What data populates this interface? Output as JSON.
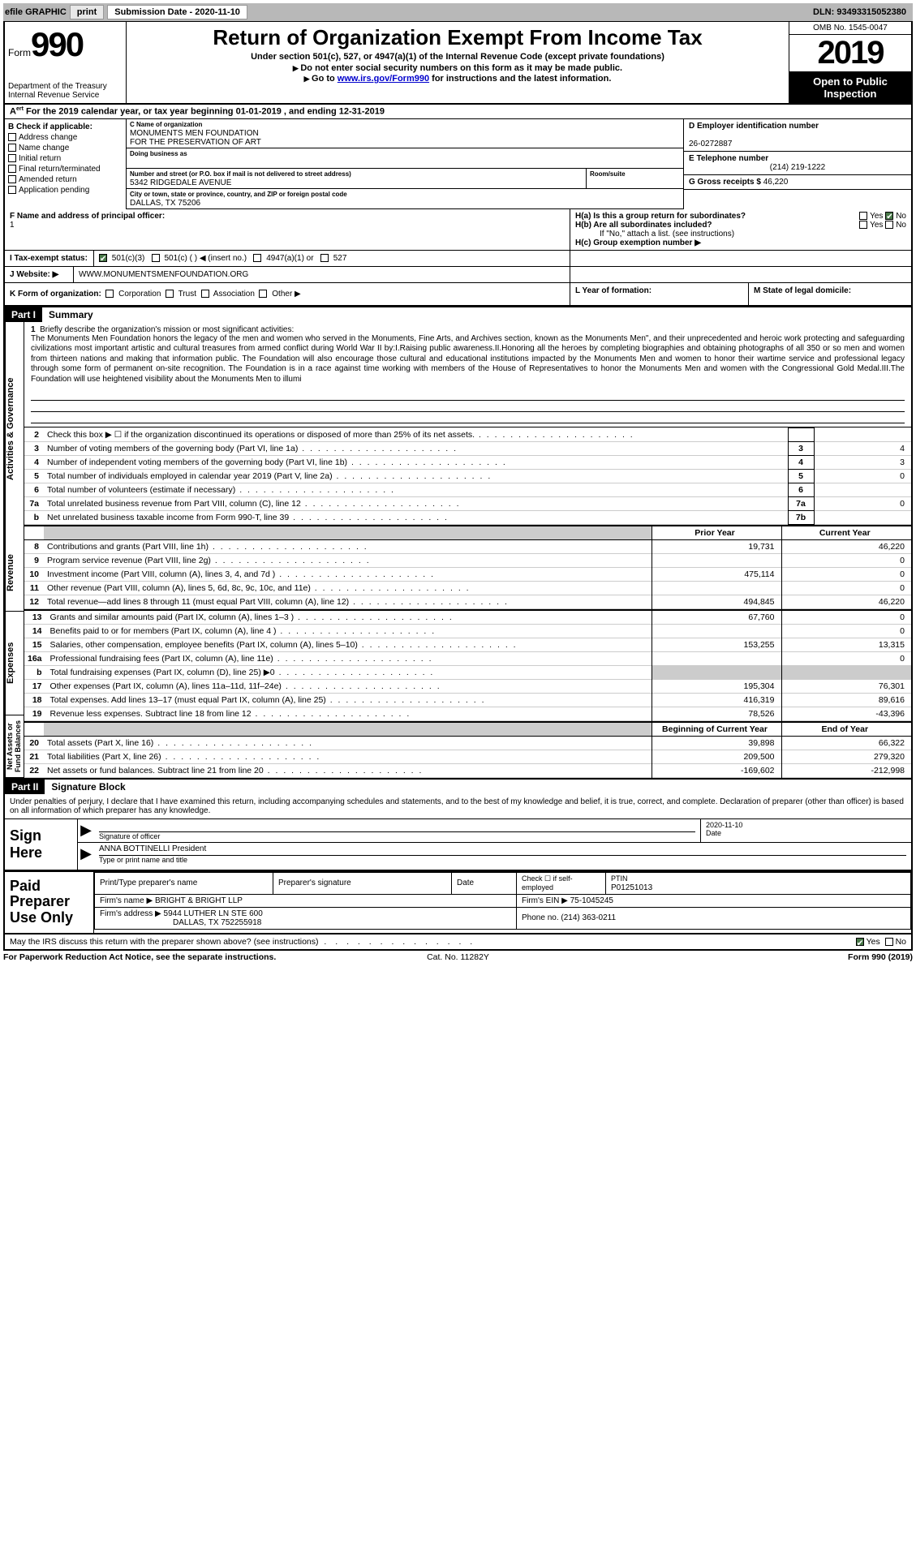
{
  "topbar": {
    "efile_label": "efile GRAPHIC",
    "print_btn": "print",
    "subdate_label": "Submission Date - 2020-11-10",
    "dln": "DLN: 93493315052380"
  },
  "header": {
    "form_word": "Form",
    "form_num": "990",
    "dept": "Department of the Treasury\nInternal Revenue Service",
    "title": "Return of Organization Exempt From Income Tax",
    "sub": "Under section 501(c), 527, or 4947(a)(1) of the Internal Revenue Code (except private foundations)",
    "instr1": "Do not enter social security numbers on this form as it may be made public.",
    "instr2_pre": "Go to ",
    "instr2_link": "www.irs.gov/Form990",
    "instr2_post": " for instructions and the latest information.",
    "omb": "OMB No. 1545-0047",
    "year": "2019",
    "inspect": "Open to Public Inspection"
  },
  "line_a": "For the 2019 calendar year, or tax year beginning 01-01-2019   , and ending 12-31-2019",
  "checks": {
    "b_label": "B Check if applicable:",
    "items": [
      "Address change",
      "Name change",
      "Initial return",
      "Final return/terminated",
      "Amended return",
      "Application pending"
    ]
  },
  "org": {
    "c_label": "C Name of organization",
    "name1": "MONUMENTS MEN FOUNDATION",
    "name2": "FOR THE PRESERVATION OF ART",
    "dba_label": "Doing business as",
    "dba": "",
    "street_label": "Number and street (or P.O. box if mail is not delivered to street address)",
    "street": "5342 RIDGEDALE AVENUE",
    "room_label": "Room/suite",
    "room": "",
    "city_label": "City or town, state or province, country, and ZIP or foreign postal code",
    "city": "DALLAS, TX  75206"
  },
  "right_info": {
    "d_label": "D Employer identification number",
    "ein": "26-0272887",
    "e_label": "E Telephone number",
    "phone": "(214) 219-1222",
    "g_label": "G Gross receipts $",
    "gross": "46,220"
  },
  "principal": {
    "f_label": "F  Name and address of principal officer:",
    "val": "1",
    "ha": "H(a)  Is this a group return for subordinates?",
    "hb": "H(b)  Are all subordinates included?",
    "hb_note": "If \"No,\" attach a list. (see instructions)",
    "hc": "H(c)  Group exemption number ▶",
    "yes": "Yes",
    "no": "No"
  },
  "tax": {
    "i_label": "I   Tax-exempt status:",
    "opts": [
      "501(c)(3)",
      "501(c) (   ) ◀ (insert no.)",
      "4947(a)(1) or",
      "527"
    ]
  },
  "web": {
    "j_label": "J   Website: ▶",
    "url": "WWW.MONUMENTSMENFOUNDATION.ORG"
  },
  "k": {
    "label": "K Form of organization:",
    "opts": [
      "Corporation",
      "Trust",
      "Association",
      "Other ▶"
    ],
    "l": "L Year of formation:",
    "m": "M State of legal domicile:"
  },
  "part1": {
    "hdr": "Part I",
    "title": "Summary"
  },
  "mission": {
    "num": "1",
    "label": "Briefly describe the organization's mission or most significant activities:",
    "text": "The Monuments Men Foundation honors the legacy of the men and women who served in the Monuments, Fine Arts, and Archives section, known as the Monuments Men\", and their unprecedented and heroic work protecting and safeguarding civilizations most important artistic and cultural treasures from armed conflict during World War II by:I.Raising public awareness.II.Honoring all the heroes by completing biographies and obtaining photographs of all 350 or so men and women from thirteen nations and making that information public. The Foundation will also encourage those cultural and educational institutions impacted by the Monuments Men and women to honor their wartime service and professional legacy through some form of permanent on-site recognition. The Foundation is in a race against time working with members of the House of Representatives to honor the Monuments Men and women with the Congressional Gold Medal.III.The Foundation will use heightened visibility about the Monuments Men to illumi"
  },
  "vtabs": {
    "ag": "Activities & Governance",
    "rev": "Revenue",
    "exp": "Expenses",
    "nab": "Net Assets or Fund Balances"
  },
  "lines_ag": [
    {
      "n": "2",
      "d": "Check this box ▶ ☐ if the organization discontinued its operations or disposed of more than 25% of its net assets.",
      "nb": "",
      "v": ""
    },
    {
      "n": "3",
      "d": "Number of voting members of the governing body (Part VI, line 1a)",
      "nb": "3",
      "v": "4"
    },
    {
      "n": "4",
      "d": "Number of independent voting members of the governing body (Part VI, line 1b)",
      "nb": "4",
      "v": "3"
    },
    {
      "n": "5",
      "d": "Total number of individuals employed in calendar year 2019 (Part V, line 2a)",
      "nb": "5",
      "v": "0"
    },
    {
      "n": "6",
      "d": "Total number of volunteers (estimate if necessary)",
      "nb": "6",
      "v": ""
    },
    {
      "n": "7a",
      "d": "Total unrelated business revenue from Part VIII, column (C), line 12",
      "nb": "7a",
      "v": "0"
    },
    {
      "n": "b",
      "d": "Net unrelated business taxable income from Form 990-T, line 39",
      "nb": "7b",
      "v": ""
    }
  ],
  "col_hdrs": {
    "prior": "Prior Year",
    "current": "Current Year",
    "boy": "Beginning of Current Year",
    "eoy": "End of Year"
  },
  "lines_rev": [
    {
      "n": "8",
      "d": "Contributions and grants (Part VIII, line 1h)",
      "p": "19,731",
      "c": "46,220"
    },
    {
      "n": "9",
      "d": "Program service revenue (Part VIII, line 2g)",
      "p": "",
      "c": "0"
    },
    {
      "n": "10",
      "d": "Investment income (Part VIII, column (A), lines 3, 4, and 7d )",
      "p": "475,114",
      "c": "0"
    },
    {
      "n": "11",
      "d": "Other revenue (Part VIII, column (A), lines 5, 6d, 8c, 9c, 10c, and 11e)",
      "p": "",
      "c": "0"
    },
    {
      "n": "12",
      "d": "Total revenue—add lines 8 through 11 (must equal Part VIII, column (A), line 12)",
      "p": "494,845",
      "c": "46,220"
    }
  ],
  "lines_exp": [
    {
      "n": "13",
      "d": "Grants and similar amounts paid (Part IX, column (A), lines 1–3 )",
      "p": "67,760",
      "c": "0"
    },
    {
      "n": "14",
      "d": "Benefits paid to or for members (Part IX, column (A), line 4 )",
      "p": "",
      "c": "0"
    },
    {
      "n": "15",
      "d": "Salaries, other compensation, employee benefits (Part IX, column (A), lines 5–10)",
      "p": "153,255",
      "c": "13,315"
    },
    {
      "n": "16a",
      "d": "Professional fundraising fees (Part IX, column (A), line 11e)",
      "p": "",
      "c": "0"
    },
    {
      "n": "b",
      "d": "Total fundraising expenses (Part IX, column (D), line 25) ▶0",
      "p": "",
      "c": "",
      "shade": true
    },
    {
      "n": "17",
      "d": "Other expenses (Part IX, column (A), lines 11a–11d, 11f–24e)",
      "p": "195,304",
      "c": "76,301"
    },
    {
      "n": "18",
      "d": "Total expenses. Add lines 13–17 (must equal Part IX, column (A), line 25)",
      "p": "416,319",
      "c": "89,616"
    },
    {
      "n": "19",
      "d": "Revenue less expenses. Subtract line 18 from line 12",
      "p": "78,526",
      "c": "-43,396"
    }
  ],
  "lines_nab": [
    {
      "n": "20",
      "d": "Total assets (Part X, line 16)",
      "p": "39,898",
      "c": "66,322"
    },
    {
      "n": "21",
      "d": "Total liabilities (Part X, line 26)",
      "p": "209,500",
      "c": "279,320"
    },
    {
      "n": "22",
      "d": "Net assets or fund balances. Subtract line 21 from line 20",
      "p": "-169,602",
      "c": "-212,998"
    }
  ],
  "part2": {
    "hdr": "Part II",
    "title": "Signature Block"
  },
  "perjury": "Under penalties of perjury, I declare that I have examined this return, including accompanying schedules and statements, and to the best of my knowledge and belief, it is true, correct, and complete. Declaration of preparer (other than officer) is based on all information of which preparer has any knowledge.",
  "sign": {
    "left": "Sign Here",
    "sig_label": "Signature of officer",
    "date": "2020-11-10",
    "date_label": "Date",
    "name": "ANNA BOTTINELLI President",
    "name_label": "Type or print name and title"
  },
  "paid": {
    "left": "Paid Preparer Use Only",
    "h1": "Print/Type preparer's name",
    "h2": "Preparer's signature",
    "h3": "Date",
    "h4_a": "Check ☐ if self-employed",
    "h4_b": "PTIN",
    "ptin": "P01251013",
    "firm_name_lbl": "Firm's name    ▶",
    "firm_name": "BRIGHT & BRIGHT LLP",
    "firm_ein_lbl": "Firm's EIN ▶",
    "firm_ein": "75-1045245",
    "firm_addr_lbl": "Firm's address ▶",
    "firm_addr1": "5944 LUTHER LN STE 600",
    "firm_addr2": "DALLAS, TX  752255918",
    "phone_lbl": "Phone no.",
    "phone": "(214) 363-0211"
  },
  "discuss": {
    "text": "May the IRS discuss this return with the preparer shown above? (see instructions)",
    "yes": "Yes",
    "no": "No"
  },
  "footer": {
    "left": "For Paperwork Reduction Act Notice, see the separate instructions.",
    "mid": "Cat. No. 11282Y",
    "right": "Form 990 (2019)"
  }
}
